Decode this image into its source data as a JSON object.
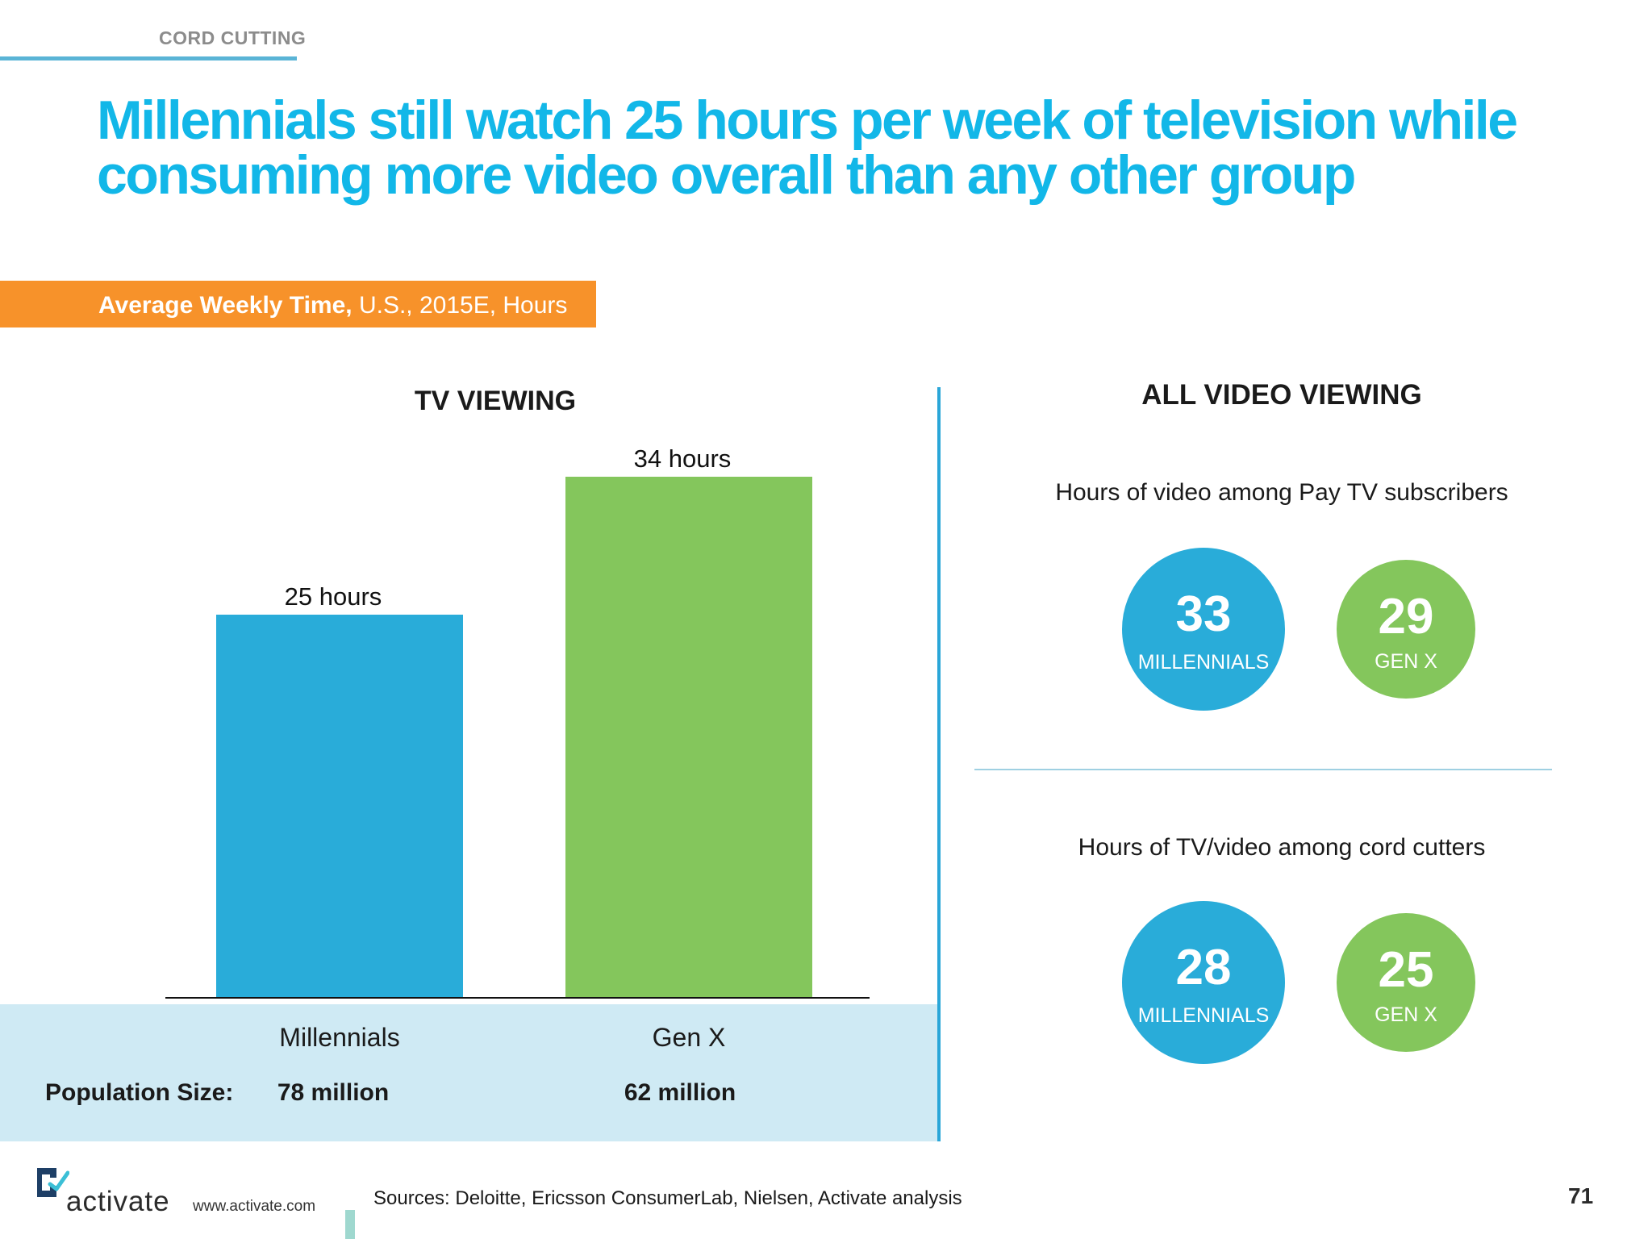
{
  "header": {
    "section": "CORD CUTTING",
    "title_line1": "Millennials still watch 25 hours per week of television while",
    "title_line2": "consuming more video overall than any other group"
  },
  "subtitle": {
    "bold": "Average Weekly Time,",
    "rest": " U.S., 2015E, Hours"
  },
  "tv_panel": {
    "heading": "TV VIEWING",
    "population_label": "Population Size:"
  },
  "chart_data": {
    "type": "bar",
    "title": "TV VIEWING",
    "categories": [
      "Millennials",
      "Gen X"
    ],
    "values": [
      25,
      34
    ],
    "unit": "hours",
    "data_labels": [
      "25 hours",
      "34 hours"
    ],
    "population": [
      "78 million",
      "62 million"
    ],
    "colors": [
      "#29acd9",
      "#84c65c"
    ],
    "ylim": [
      0,
      34
    ],
    "grid": false,
    "legend": "none"
  },
  "video_panel": {
    "heading": "ALL VIDEO VIEWING",
    "groups": [
      {
        "title": "Hours of video among Pay TV subscribers",
        "bubbles": [
          {
            "value": "33",
            "label": "MILLENNIALS",
            "color": "#29acd9"
          },
          {
            "value": "29",
            "label": "GEN X",
            "color": "#84c65c"
          }
        ]
      },
      {
        "title": "Hours of TV/video among cord cutters",
        "bubbles": [
          {
            "value": "28",
            "label": "MILLENNIALS",
            "color": "#29acd9"
          },
          {
            "value": "25",
            "label": "GEN X",
            "color": "#84c65c"
          }
        ]
      }
    ]
  },
  "footer": {
    "logo_text": "activate",
    "url": "www.activate.com",
    "sources": "Sources: Deloitte, Ericsson ConsumerLab, Nielsen, Activate analysis",
    "page_number": "71"
  }
}
